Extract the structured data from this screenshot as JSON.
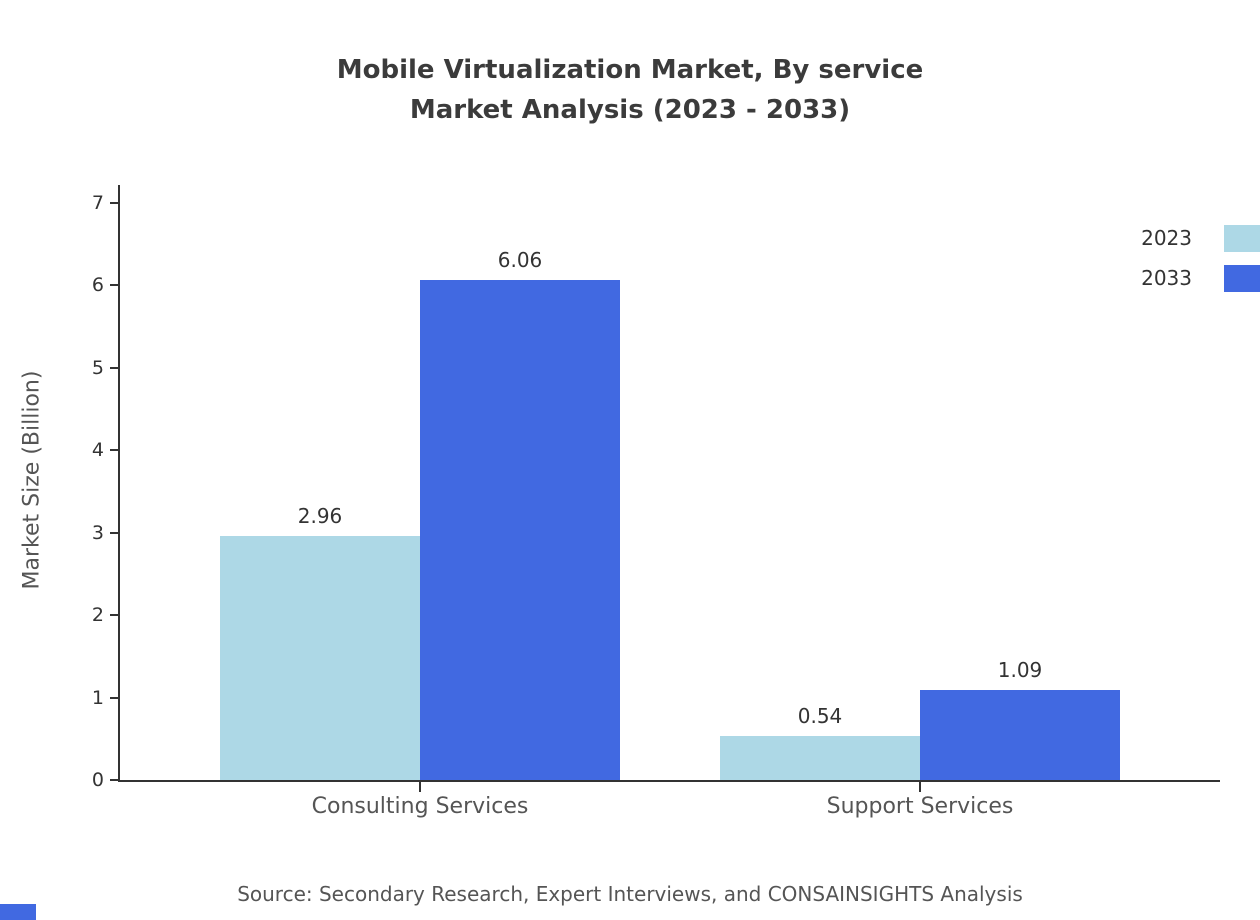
{
  "title": {
    "line1": "Mobile Virtualization Market, By service",
    "line2": "Market Analysis (2023 - 2033)"
  },
  "source": "Source: Secondary Research, Expert Interviews, and CONSAINSIGHTS Analysis",
  "chart_data": {
    "type": "bar",
    "categories": [
      "Consulting Services",
      "Support Services"
    ],
    "series": [
      {
        "name": "2023",
        "color": "#ADD8E6",
        "values": [
          2.96,
          0.54
        ]
      },
      {
        "name": "2033",
        "color": "#4169E1",
        "values": [
          6.06,
          1.09
        ]
      }
    ],
    "title": "Mobile Virtualization Market, By service Market Analysis (2023 - 2033)",
    "xlabel": "",
    "ylabel": "Market Size (Billion)",
    "ylim": [
      0,
      7
    ],
    "yticks": [
      0,
      1,
      2,
      3,
      4,
      5,
      6,
      7
    ],
    "legend_position": "top-right",
    "grid": false,
    "value_labels": [
      "2.96",
      "6.06",
      "0.54",
      "1.09"
    ]
  },
  "colors": {
    "series_2023": "#ADD8E6",
    "series_2033": "#4169E1",
    "axis": "#333333",
    "title_text": "#3b3b3b",
    "muted_text": "#555555",
    "corner_mark": "#4169E1"
  }
}
